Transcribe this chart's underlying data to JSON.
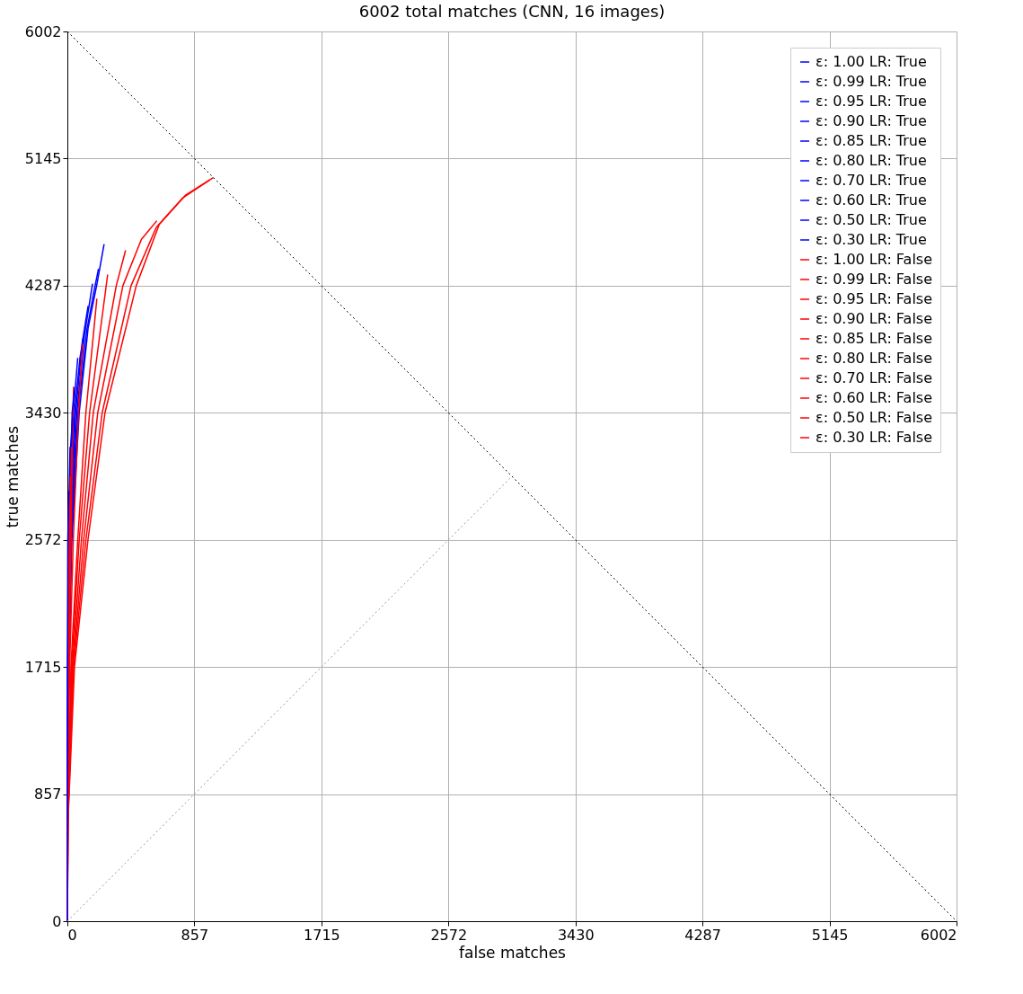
{
  "chart_data": {
    "type": "line",
    "title": "6002 total matches (CNN, 16 images)",
    "xlabel": "false matches",
    "ylabel": "true matches",
    "xlim": [
      0,
      6002
    ],
    "ylim": [
      0,
      6002
    ],
    "xticks": [
      0,
      857,
      1715,
      2572,
      3430,
      4287,
      5145,
      6002
    ],
    "yticks": [
      0,
      857,
      1715,
      2572,
      3430,
      4287,
      5145,
      6002
    ],
    "grid": true,
    "legend": "top right",
    "marker": "none",
    "series": [
      {
        "name": "ε: 1.00 LR: True",
        "color": "#0000ff",
        "x": [
          0,
          2,
          10,
          30,
          80,
          140,
          200,
          248
        ],
        "values": [
          0,
          857,
          1715,
          2572,
          3430,
          4000,
          4300,
          4568
        ]
      },
      {
        "name": "ε: 0.99 LR: True",
        "color": "#0000ff",
        "x": [
          0,
          2,
          9,
          27,
          72,
          130,
          180,
          210
        ],
        "values": [
          0,
          857,
          1715,
          2572,
          3430,
          3980,
          4250,
          4400
        ]
      },
      {
        "name": "ε: 0.95 LR: True",
        "color": "#0000ff",
        "x": [
          0,
          2,
          8,
          24,
          64,
          115,
          170
        ],
        "values": [
          0,
          857,
          1715,
          2572,
          3430,
          3950,
          4300
        ]
      },
      {
        "name": "ε: 0.90 LR: True",
        "color": "#0000ff",
        "x": [
          0,
          2,
          7,
          21,
          56,
          100,
          140
        ],
        "values": [
          0,
          857,
          1715,
          2572,
          3430,
          3900,
          4150
        ]
      },
      {
        "name": "ε: 0.85 LR: True",
        "color": "#0000ff",
        "x": [
          0,
          1,
          6,
          18,
          48,
          85,
          110
        ],
        "values": [
          0,
          857,
          1715,
          2572,
          3430,
          3800,
          3950
        ]
      },
      {
        "name": "ε: 0.80 LR: True",
        "color": "#0000ff",
        "x": [
          0,
          1,
          5,
          15,
          40,
          70
        ],
        "values": [
          0,
          857,
          1715,
          2572,
          3430,
          3800
        ]
      },
      {
        "name": "ε: 0.70 LR: True",
        "color": "#0000ff",
        "x": [
          0,
          1,
          4,
          12,
          32,
          50
        ],
        "values": [
          0,
          857,
          1715,
          2572,
          3430,
          3600
        ]
      },
      {
        "name": "ε: 0.60 LR: True",
        "color": "#0000ff",
        "x": [
          0,
          1,
          3,
          9,
          22,
          35
        ],
        "values": [
          0,
          857,
          1715,
          2572,
          3200,
          3400
        ]
      },
      {
        "name": "ε: 0.50 LR: True",
        "color": "#0000ff",
        "x": [
          0,
          1,
          2,
          6,
          18
        ],
        "values": [
          0,
          857,
          1715,
          2572,
          3200
        ]
      },
      {
        "name": "ε: 0.30 LR: True",
        "color": "#0000ff",
        "x": [
          0,
          1,
          1,
          3,
          10
        ],
        "values": [
          0,
          857,
          1715,
          2572,
          2900
        ]
      },
      {
        "name": "ε: 1.00 LR: False",
        "color": "#ff0000",
        "x": [
          0,
          5,
          12,
          48,
          139,
          254,
          465,
          620,
          800,
          985
        ],
        "values": [
          0,
          700,
          857,
          1715,
          2572,
          3430,
          4287,
          4700,
          4900,
          5016
        ]
      },
      {
        "name": "ε: 0.99 LR: False",
        "color": "#ff0000",
        "x": [
          0,
          5,
          10,
          42,
          125,
          235,
          430,
          600,
          780,
          960
        ],
        "values": [
          0,
          700,
          857,
          1715,
          2572,
          3430,
          4287,
          4680,
          4880,
          5000
        ]
      },
      {
        "name": "ε: 0.95 LR: False",
        "color": "#ff0000",
        "x": [
          0,
          4,
          9,
          38,
          110,
          205,
          375,
          500,
          604
        ],
        "values": [
          0,
          700,
          857,
          1715,
          2572,
          3430,
          4287,
          4600,
          4725
        ]
      },
      {
        "name": "ε: 0.90 LR: False",
        "color": "#ff0000",
        "x": [
          0,
          3,
          8,
          33,
          95,
          175,
          330,
          393
        ],
        "values": [
          0,
          700,
          857,
          1715,
          2572,
          3430,
          4287,
          4526
        ]
      },
      {
        "name": "ε: 0.85 LR: False",
        "color": "#ff0000",
        "x": [
          0,
          3,
          7,
          28,
          80,
          150,
          272
        ],
        "values": [
          0,
          700,
          857,
          1715,
          2572,
          3430,
          4362
        ]
      },
      {
        "name": "ε: 0.80 LR: False",
        "color": "#ff0000",
        "x": [
          0,
          2,
          6,
          24,
          70,
          125,
          199
        ],
        "values": [
          0,
          700,
          857,
          1715,
          2572,
          3430,
          4199
        ]
      },
      {
        "name": "ε: 0.70 LR: False",
        "color": "#ff0000",
        "x": [
          0,
          2,
          4,
          15,
          40,
          75,
          103
        ],
        "values": [
          0,
          700,
          857,
          1715,
          2572,
          3430,
          3896
        ]
      },
      {
        "name": "ε: 0.60 LR: False",
        "color": "#ff0000",
        "x": [
          0,
          1,
          3,
          10,
          25,
          38,
          42
        ],
        "values": [
          0,
          700,
          857,
          1715,
          2572,
          3430,
          3606
        ]
      },
      {
        "name": "ε: 0.50 LR: False",
        "color": "#ff0000",
        "x": [
          0,
          1,
          2,
          7,
          18,
          28
        ],
        "values": [
          0,
          700,
          857,
          1715,
          2572,
          3200
        ]
      },
      {
        "name": "ε: 0.30 LR: False",
        "color": "#ff0000",
        "x": [
          0,
          1,
          2,
          5,
          12,
          20
        ],
        "values": [
          0,
          700,
          857,
          1715,
          2572,
          3000
        ]
      },
      {
        "color": "#000000",
        "line_style": "dotted",
        "x": [
          0,
          6002
        ],
        "values": [
          6002,
          0
        ]
      },
      {
        "color": "#999999",
        "line_style": "dotted",
        "x": [
          0,
          3001
        ],
        "values": [
          0,
          3001
        ]
      }
    ]
  }
}
